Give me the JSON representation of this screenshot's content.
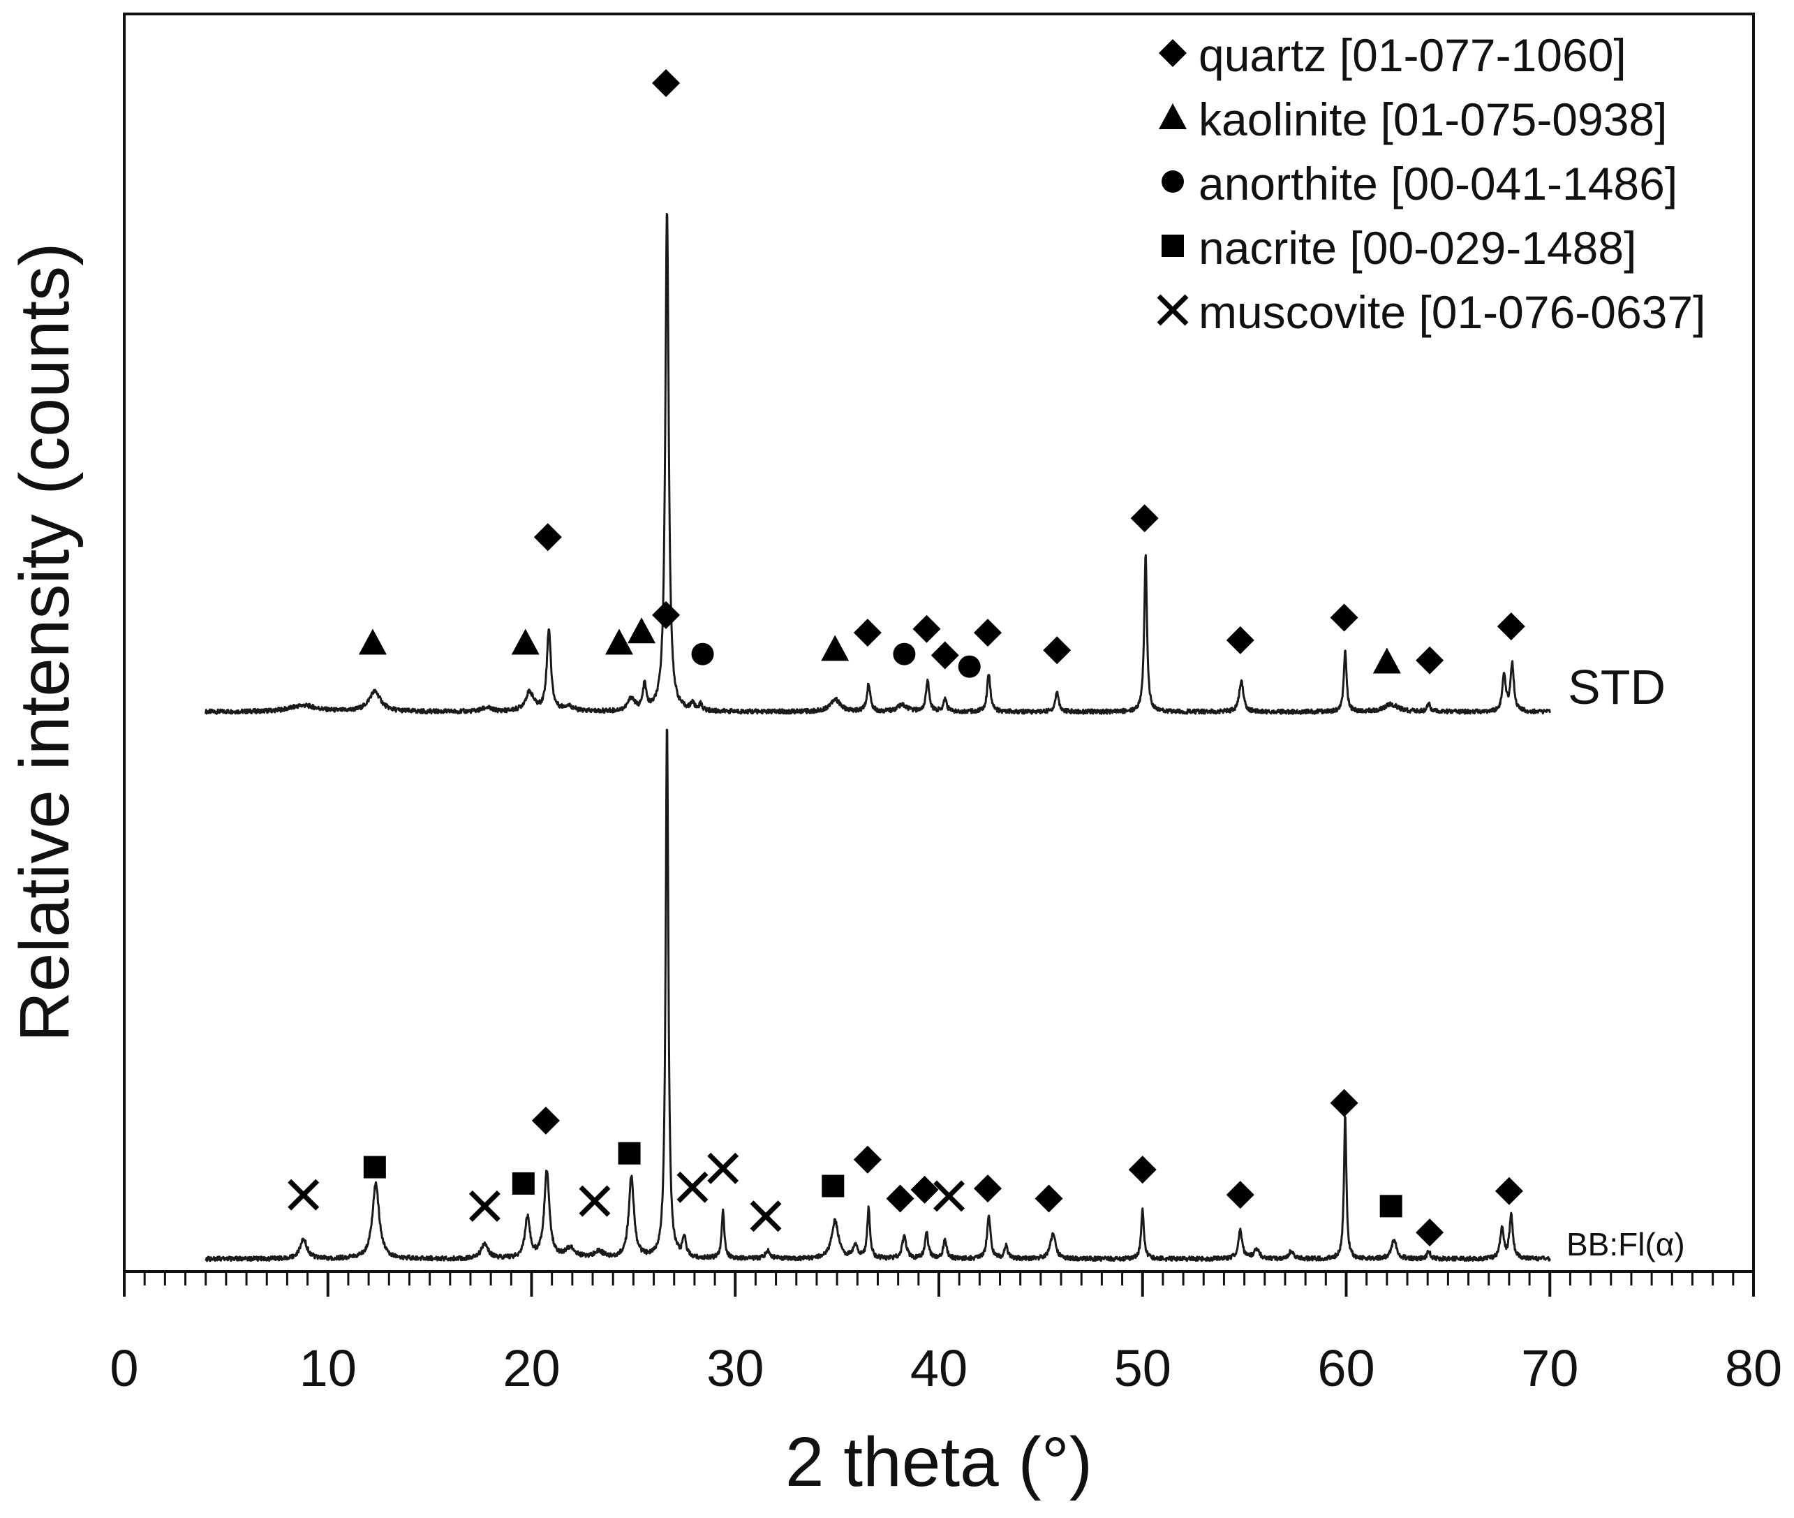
{
  "chart_data": {
    "type": "line",
    "title": "",
    "xlabel": "2 theta (°)",
    "ylabel": "Relative intensity (counts)",
    "xlim": [
      0,
      80
    ],
    "x_ticks": [
      {
        "value": 0,
        "label": "0"
      },
      {
        "value": 10,
        "label": "10"
      },
      {
        "value": 20,
        "label": "20"
      },
      {
        "value": 30,
        "label": "30"
      },
      {
        "value": 40,
        "label": "40"
      },
      {
        "value": 50,
        "label": "50"
      },
      {
        "value": 60,
        "label": "60"
      },
      {
        "value": 70,
        "label": "70"
      },
      {
        "value": 80,
        "label": "80"
      }
    ],
    "x_minor_step": 1,
    "ylim": [
      0,
      100
    ],
    "y_ticks_shown": false,
    "grid": false,
    "legend_position": "top-right",
    "legend": [
      {
        "marker": "diamond",
        "label": "quartz [01-077-1060]"
      },
      {
        "marker": "triangle",
        "label": "kaolinite [01-075-0938]"
      },
      {
        "marker": "circle",
        "label": "anorthite [00-041-1486]"
      },
      {
        "marker": "square",
        "label": "nacrite [00-029-1488]"
      },
      {
        "marker": "cross",
        "label": "muscovite [01-076-0637]"
      }
    ],
    "series": [
      {
        "name": "STD",
        "label": "STD",
        "x_range": [
          4,
          70
        ],
        "baseline": 44.5,
        "peaks": [
          [
            8.8,
            0.5,
            0.8
          ],
          [
            12.3,
            1.6,
            0.35
          ],
          [
            17.8,
            0.3,
            0.3
          ],
          [
            19.9,
            1.5,
            0.25
          ],
          [
            20.85,
            6.5,
            0.12
          ],
          [
            21.8,
            0.4,
            0.3
          ],
          [
            24.9,
            1.0,
            0.2
          ],
          [
            25.55,
            2.0,
            0.1
          ],
          [
            26.65,
            40.0,
            0.1
          ],
          [
            27.9,
            0.6,
            0.1
          ],
          [
            28.3,
            0.5,
            0.1
          ],
          [
            34.9,
            1.0,
            0.3
          ],
          [
            36.55,
            2.2,
            0.1
          ],
          [
            38.2,
            0.5,
            0.3
          ],
          [
            39.45,
            2.4,
            0.1
          ],
          [
            40.3,
            1.0,
            0.1
          ],
          [
            42.45,
            3.0,
            0.1
          ],
          [
            45.8,
            1.6,
            0.1
          ],
          [
            50.15,
            12.5,
            0.08
          ],
          [
            54.85,
            2.5,
            0.12
          ],
          [
            59.95,
            4.8,
            0.08
          ],
          [
            62.2,
            0.6,
            0.4
          ],
          [
            64.05,
            0.6,
            0.1
          ],
          [
            67.75,
            2.8,
            0.1
          ],
          [
            68.15,
            3.8,
            0.1
          ]
        ],
        "markers": [
          {
            "x": 12.2,
            "y": 50.0,
            "phase": "kaolinite"
          },
          {
            "x": 19.7,
            "y": 50.0,
            "phase": "kaolinite"
          },
          {
            "x": 24.3,
            "y": 50.0,
            "phase": "kaolinite"
          },
          {
            "x": 25.4,
            "y": 50.9,
            "phase": "kaolinite"
          },
          {
            "x": 34.9,
            "y": 49.5,
            "phase": "kaolinite"
          },
          {
            "x": 62.0,
            "y": 48.5,
            "phase": "kaolinite"
          },
          {
            "x": 28.4,
            "y": 49.1,
            "phase": "anorthite"
          },
          {
            "x": 38.3,
            "y": 49.1,
            "phase": "anorthite"
          },
          {
            "x": 41.5,
            "y": 48.1,
            "phase": "anorthite"
          },
          {
            "x": 20.8,
            "y": 58.4,
            "phase": "quartz"
          },
          {
            "x": 26.6,
            "y": 94.5,
            "phase": "quartz"
          },
          {
            "x": 36.5,
            "y": 50.8,
            "phase": "quartz"
          },
          {
            "x": 39.4,
            "y": 51.1,
            "phase": "quartz"
          },
          {
            "x": 40.3,
            "y": 49.0,
            "phase": "quartz"
          },
          {
            "x": 42.4,
            "y": 50.8,
            "phase": "quartz"
          },
          {
            "x": 45.8,
            "y": 49.4,
            "phase": "quartz"
          },
          {
            "x": 50.1,
            "y": 59.9,
            "phase": "quartz"
          },
          {
            "x": 54.8,
            "y": 50.2,
            "phase": "quartz"
          },
          {
            "x": 59.9,
            "y": 52.0,
            "phase": "quartz"
          },
          {
            "x": 64.1,
            "y": 48.6,
            "phase": "quartz"
          },
          {
            "x": 68.1,
            "y": 51.3,
            "phase": "quartz"
          }
        ]
      },
      {
        "name": "BB:Fl(α)",
        "label": "BB:Fl(α)",
        "x_range": [
          4,
          70
        ],
        "baseline": 1.0,
        "peaks": [
          [
            8.8,
            1.6,
            0.2
          ],
          [
            12.35,
            6.0,
            0.2
          ],
          [
            17.7,
            1.2,
            0.2
          ],
          [
            19.8,
            3.2,
            0.15
          ],
          [
            20.75,
            7.0,
            0.15
          ],
          [
            21.9,
            0.8,
            0.3
          ],
          [
            23.3,
            0.5,
            0.3
          ],
          [
            24.9,
            6.5,
            0.15
          ],
          [
            26.65,
            42.5,
            0.08
          ],
          [
            27.5,
            1.5,
            0.1
          ],
          [
            29.4,
            3.8,
            0.08
          ],
          [
            31.6,
            0.6,
            0.15
          ],
          [
            34.9,
            3.0,
            0.2
          ],
          [
            35.9,
            1.0,
            0.15
          ],
          [
            36.55,
            4.0,
            0.08
          ],
          [
            38.3,
            1.8,
            0.12
          ],
          [
            39.4,
            2.0,
            0.1
          ],
          [
            40.3,
            1.5,
            0.1
          ],
          [
            42.45,
            3.5,
            0.1
          ],
          [
            43.3,
            1.0,
            0.1
          ],
          [
            45.6,
            2.0,
            0.15
          ],
          [
            50.0,
            4.0,
            0.08
          ],
          [
            54.8,
            2.2,
            0.12
          ],
          [
            55.6,
            0.8,
            0.15
          ],
          [
            57.3,
            0.6,
            0.15
          ],
          [
            59.95,
            11.5,
            0.07
          ],
          [
            62.35,
            1.5,
            0.15
          ],
          [
            64.05,
            0.6,
            0.1
          ],
          [
            67.65,
            2.5,
            0.1
          ],
          [
            68.1,
            3.4,
            0.1
          ]
        ],
        "markers": [
          {
            "x": 12.3,
            "y": 8.3,
            "phase": "nacrite"
          },
          {
            "x": 19.6,
            "y": 7.0,
            "phase": "nacrite"
          },
          {
            "x": 24.8,
            "y": 9.4,
            "phase": "nacrite"
          },
          {
            "x": 34.8,
            "y": 6.8,
            "phase": "nacrite"
          },
          {
            "x": 62.2,
            "y": 5.2,
            "phase": "nacrite"
          },
          {
            "x": 8.8,
            "y": 6.1,
            "phase": "muscovite"
          },
          {
            "x": 17.7,
            "y": 5.2,
            "phase": "muscovite"
          },
          {
            "x": 23.1,
            "y": 5.6,
            "phase": "muscovite"
          },
          {
            "x": 27.9,
            "y": 6.7,
            "phase": "muscovite"
          },
          {
            "x": 29.4,
            "y": 8.2,
            "phase": "muscovite"
          },
          {
            "x": 31.5,
            "y": 4.4,
            "phase": "muscovite"
          },
          {
            "x": 40.5,
            "y": 6.0,
            "phase": "muscovite"
          },
          {
            "x": 20.7,
            "y": 12.0,
            "phase": "quartz"
          },
          {
            "x": 26.6,
            "y": 52.2,
            "phase": "quartz"
          },
          {
            "x": 36.5,
            "y": 8.9,
            "phase": "quartz"
          },
          {
            "x": 38.1,
            "y": 5.8,
            "phase": "quartz"
          },
          {
            "x": 39.3,
            "y": 6.5,
            "phase": "quartz"
          },
          {
            "x": 42.4,
            "y": 6.6,
            "phase": "quartz"
          },
          {
            "x": 45.4,
            "y": 5.8,
            "phase": "quartz"
          },
          {
            "x": 50.0,
            "y": 8.1,
            "phase": "quartz"
          },
          {
            "x": 54.8,
            "y": 6.1,
            "phase": "quartz"
          },
          {
            "x": 59.9,
            "y": 13.4,
            "phase": "quartz"
          },
          {
            "x": 64.1,
            "y": 3.1,
            "phase": "quartz"
          },
          {
            "x": 68.0,
            "y": 6.4,
            "phase": "quartz"
          }
        ]
      }
    ]
  }
}
